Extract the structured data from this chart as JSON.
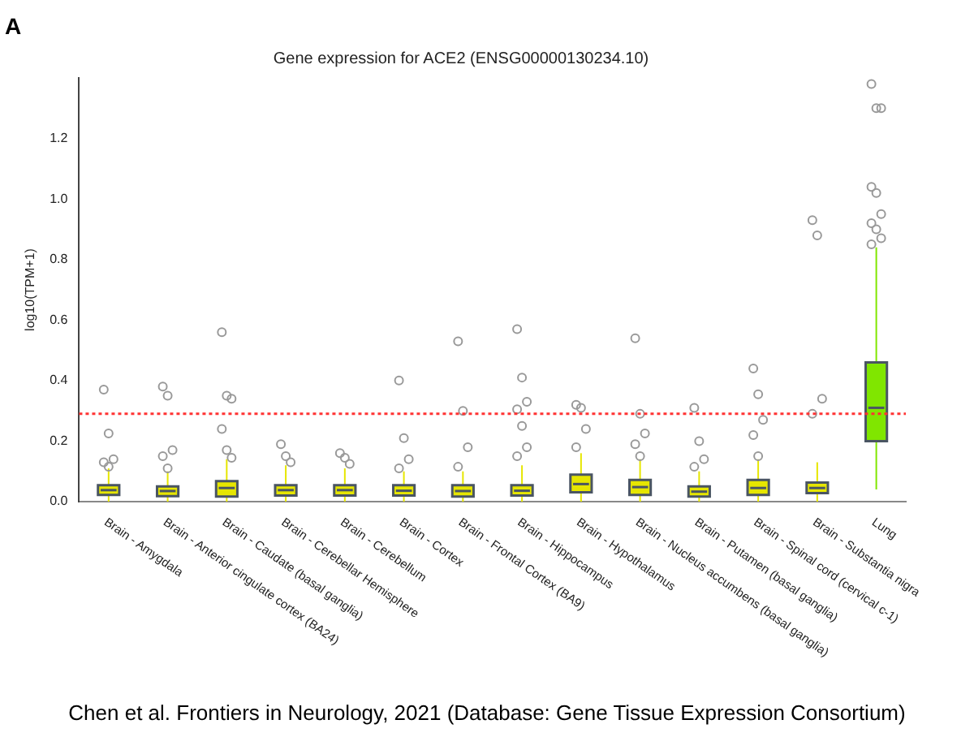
{
  "chart_data": {
    "type": "box",
    "title": "Gene expression for ACE2 (ENSG00000130234.10)",
    "ylabel": "log10(TPM+1)",
    "categories": [
      "Brain - Amygdala",
      "Brain - Anterior cingulate cortex (BA24)",
      "Brain - Caudate (basal ganglia)",
      "Brain - Cerebellar Hemisphere",
      "Brain - Cerebellum",
      "Brain - Cortex",
      "Brain - Frontal Cortex (BA9)",
      "Brain - Hippocampus",
      "Brain - Hypothalamus",
      "Brain - Nucleus accumbens (basal ganglia)",
      "Brain - Putamen (basal ganglia)",
      "Brain - Spinal cord (cervical c-1)",
      "Brain - Substantia nigra",
      "Lung"
    ],
    "colors": [
      "#e6e600",
      "#e6e600",
      "#e6e600",
      "#e6e600",
      "#e6e600",
      "#e6e600",
      "#e6e600",
      "#e6e600",
      "#e6e600",
      "#e6e600",
      "#e6e600",
      "#e6e600",
      "#e6e600",
      "#80e600"
    ],
    "boxes": [
      {
        "low": 0,
        "q1": 0.022,
        "median": 0.038,
        "q3": 0.054,
        "high": 0.11,
        "outliers": [
          0.37,
          0.225,
          0.14,
          0.13,
          0.115
        ]
      },
      {
        "low": 0,
        "q1": 0.018,
        "median": 0.035,
        "q3": 0.05,
        "high": 0.1,
        "outliers": [
          0.38,
          0.35,
          0.17,
          0.15,
          0.11
        ]
      },
      {
        "low": 0,
        "q1": 0.017,
        "median": 0.045,
        "q3": 0.068,
        "high": 0.14,
        "outliers": [
          0.56,
          0.35,
          0.34,
          0.24,
          0.17,
          0.145
        ]
      },
      {
        "low": 0,
        "q1": 0.02,
        "median": 0.038,
        "q3": 0.054,
        "high": 0.12,
        "outliers": [
          0.19,
          0.15,
          0.13
        ]
      },
      {
        "low": 0,
        "q1": 0.02,
        "median": 0.038,
        "q3": 0.054,
        "high": 0.11,
        "outliers": [
          0.16,
          0.145,
          0.125
        ]
      },
      {
        "low": 0,
        "q1": 0.02,
        "median": 0.036,
        "q3": 0.054,
        "high": 0.1,
        "outliers": [
          0.4,
          0.21,
          0.14,
          0.11
        ]
      },
      {
        "low": 0,
        "q1": 0.017,
        "median": 0.035,
        "q3": 0.054,
        "high": 0.1,
        "outliers": [
          0.53,
          0.3,
          0.18,
          0.115
        ]
      },
      {
        "low": 0,
        "q1": 0.02,
        "median": 0.036,
        "q3": 0.054,
        "high": 0.12,
        "outliers": [
          0.57,
          0.41,
          0.33,
          0.305,
          0.25,
          0.18,
          0.15
        ]
      },
      {
        "low": 0,
        "q1": 0.031,
        "median": 0.058,
        "q3": 0.089,
        "high": 0.16,
        "outliers": [
          0.32,
          0.31,
          0.24,
          0.18
        ]
      },
      {
        "low": 0,
        "q1": 0.022,
        "median": 0.048,
        "q3": 0.072,
        "high": 0.14,
        "outliers": [
          0.54,
          0.29,
          0.225,
          0.19,
          0.15
        ]
      },
      {
        "low": 0,
        "q1": 0.017,
        "median": 0.033,
        "q3": 0.05,
        "high": 0.1,
        "outliers": [
          0.31,
          0.2,
          0.14,
          0.115
        ]
      },
      {
        "low": 0,
        "q1": 0.022,
        "median": 0.045,
        "q3": 0.072,
        "high": 0.14,
        "outliers": [
          0.44,
          0.355,
          0.27,
          0.22,
          0.15
        ]
      },
      {
        "low": 0,
        "q1": 0.028,
        "median": 0.045,
        "q3": 0.063,
        "high": 0.13,
        "outliers": [
          0.93,
          0.88,
          0.34,
          0.29
        ]
      },
      {
        "low": 0.04,
        "q1": 0.2,
        "median": 0.31,
        "q3": 0.46,
        "high": 0.84,
        "outliers": [
          1.38,
          1.3,
          1.3,
          1.04,
          1.02,
          0.95,
          0.92,
          0.9,
          0.87,
          0.85
        ]
      }
    ],
    "ylim": [
      0,
      1.4
    ],
    "yticks": [
      {
        "value": 0,
        "label": "0.0"
      },
      0.2,
      0.4,
      0.6,
      0.8,
      {
        "value": 1,
        "label": "1.0"
      },
      1.2
    ],
    "ref_lines": [
      {
        "axis": "y",
        "value": 0.29,
        "color": "#ff3333",
        "line_style": "dotted"
      }
    ],
    "annotations": [
      "A",
      "Chen et al. Frontiers in Neurology, 2021 (Database: Gene Tissue Expression Consortium)"
    ],
    "grid": false,
    "legend": false
  }
}
